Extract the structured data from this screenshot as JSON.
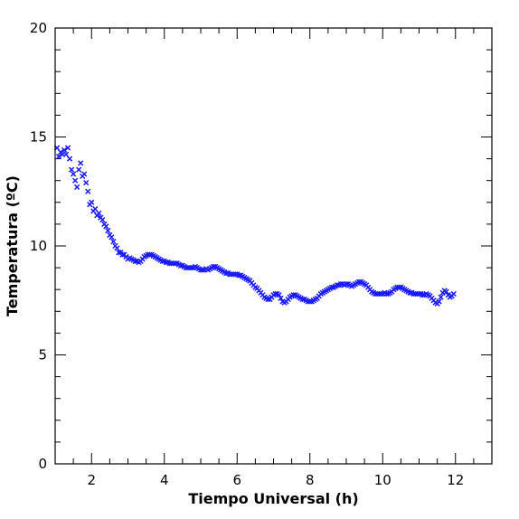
{
  "chart_data": {
    "type": "scatter",
    "title": "",
    "xlabel": "Tiempo Universal (h)",
    "ylabel": "Temperatura (ºC)",
    "xlim": [
      1,
      13
    ],
    "ylim": [
      0,
      20
    ],
    "x_ticks": [
      2,
      4,
      6,
      8,
      10,
      12
    ],
    "y_ticks": [
      0,
      5,
      10,
      15,
      20
    ],
    "x_tick_labels": [
      "2",
      "4",
      "6",
      "8",
      "10",
      "12"
    ],
    "y_tick_labels": [
      "0",
      "5",
      "10",
      "15",
      "20"
    ],
    "x_minor_step": 0.5,
    "y_minor_step": 1,
    "marker": "x",
    "color": "#1a1aff",
    "grid": false,
    "legend": "none",
    "series": [
      {
        "points": [
          [
            1.05,
            14.5
          ],
          [
            1.1,
            14.1
          ],
          [
            1.15,
            14.3
          ],
          [
            1.2,
            14.2
          ],
          [
            1.25,
            14.4
          ],
          [
            1.3,
            14.2
          ],
          [
            1.35,
            14.5
          ],
          [
            1.4,
            14.0
          ],
          [
            1.45,
            13.5
          ],
          [
            1.5,
            13.3
          ],
          [
            1.55,
            13.0
          ],
          [
            1.6,
            12.7
          ],
          [
            1.65,
            13.5
          ],
          [
            1.7,
            13.8
          ],
          [
            1.75,
            13.2
          ],
          [
            1.8,
            13.3
          ],
          [
            1.85,
            12.9
          ],
          [
            1.9,
            12.5
          ],
          [
            1.95,
            11.9
          ],
          [
            2.0,
            12.0
          ],
          [
            2.05,
            11.6
          ],
          [
            2.1,
            11.7
          ],
          [
            2.15,
            11.4
          ],
          [
            2.2,
            11.5
          ],
          [
            2.25,
            11.3
          ],
          [
            2.3,
            11.2
          ],
          [
            2.35,
            11.0
          ],
          [
            2.4,
            10.9
          ],
          [
            2.45,
            10.7
          ],
          [
            2.5,
            10.5
          ],
          [
            2.55,
            10.4
          ],
          [
            2.6,
            10.2
          ],
          [
            2.65,
            10.0
          ],
          [
            2.7,
            9.9
          ],
          [
            2.75,
            9.7
          ],
          [
            2.8,
            9.7
          ],
          [
            2.85,
            9.6
          ],
          [
            2.9,
            9.6
          ],
          [
            2.95,
            9.5
          ],
          [
            3.0,
            9.4
          ],
          [
            3.05,
            9.45
          ],
          [
            3.1,
            9.4
          ],
          [
            3.15,
            9.35
          ],
          [
            3.2,
            9.3
          ],
          [
            3.25,
            9.3
          ],
          [
            3.3,
            9.25
          ],
          [
            3.35,
            9.3
          ],
          [
            3.4,
            9.4
          ],
          [
            3.45,
            9.5
          ],
          [
            3.5,
            9.55
          ],
          [
            3.55,
            9.6
          ],
          [
            3.6,
            9.6
          ],
          [
            3.65,
            9.6
          ],
          [
            3.7,
            9.55
          ],
          [
            3.75,
            9.5
          ],
          [
            3.8,
            9.45
          ],
          [
            3.85,
            9.4
          ],
          [
            3.9,
            9.35
          ],
          [
            3.95,
            9.3
          ],
          [
            4.0,
            9.3
          ],
          [
            4.05,
            9.25
          ],
          [
            4.1,
            9.25
          ],
          [
            4.15,
            9.2
          ],
          [
            4.2,
            9.2
          ],
          [
            4.25,
            9.2
          ],
          [
            4.3,
            9.2
          ],
          [
            4.35,
            9.2
          ],
          [
            4.4,
            9.15
          ],
          [
            4.45,
            9.1
          ],
          [
            4.5,
            9.1
          ],
          [
            4.55,
            9.05
          ],
          [
            4.6,
            9.0
          ],
          [
            4.65,
            9.0
          ],
          [
            4.7,
            9.0
          ],
          [
            4.75,
            9.0
          ],
          [
            4.8,
            9.0
          ],
          [
            4.85,
            9.05
          ],
          [
            4.9,
            9.0
          ],
          [
            4.95,
            8.95
          ],
          [
            5.0,
            8.9
          ],
          [
            5.05,
            8.9
          ],
          [
            5.1,
            8.9
          ],
          [
            5.15,
            8.95
          ],
          [
            5.2,
            8.9
          ],
          [
            5.25,
            8.95
          ],
          [
            5.3,
            9.0
          ],
          [
            5.35,
            9.05
          ],
          [
            5.4,
            9.05
          ],
          [
            5.45,
            9.0
          ],
          [
            5.5,
            8.95
          ],
          [
            5.55,
            8.9
          ],
          [
            5.6,
            8.85
          ],
          [
            5.65,
            8.8
          ],
          [
            5.7,
            8.75
          ],
          [
            5.75,
            8.75
          ],
          [
            5.8,
            8.7
          ],
          [
            5.85,
            8.7
          ],
          [
            5.9,
            8.7
          ],
          [
            5.95,
            8.7
          ],
          [
            6.0,
            8.7
          ],
          [
            6.05,
            8.65
          ],
          [
            6.1,
            8.65
          ],
          [
            6.15,
            8.6
          ],
          [
            6.2,
            8.55
          ],
          [
            6.25,
            8.5
          ],
          [
            6.3,
            8.45
          ],
          [
            6.35,
            8.4
          ],
          [
            6.4,
            8.3
          ],
          [
            6.45,
            8.2
          ],
          [
            6.5,
            8.1
          ],
          [
            6.55,
            8.05
          ],
          [
            6.6,
            7.95
          ],
          [
            6.65,
            7.85
          ],
          [
            6.7,
            7.75
          ],
          [
            6.75,
            7.65
          ],
          [
            6.8,
            7.6
          ],
          [
            6.85,
            7.55
          ],
          [
            6.9,
            7.55
          ],
          [
            6.95,
            7.65
          ],
          [
            7.0,
            7.75
          ],
          [
            7.05,
            7.8
          ],
          [
            7.1,
            7.8
          ],
          [
            7.15,
            7.75
          ],
          [
            7.2,
            7.6
          ],
          [
            7.25,
            7.45
          ],
          [
            7.3,
            7.4
          ],
          [
            7.35,
            7.45
          ],
          [
            7.4,
            7.55
          ],
          [
            7.45,
            7.65
          ],
          [
            7.5,
            7.7
          ],
          [
            7.55,
            7.75
          ],
          [
            7.6,
            7.75
          ],
          [
            7.65,
            7.7
          ],
          [
            7.7,
            7.65
          ],
          [
            7.75,
            7.6
          ],
          [
            7.8,
            7.55
          ],
          [
            7.85,
            7.55
          ],
          [
            7.9,
            7.5
          ],
          [
            7.95,
            7.45
          ],
          [
            8.0,
            7.45
          ],
          [
            8.05,
            7.45
          ],
          [
            8.1,
            7.5
          ],
          [
            8.15,
            7.55
          ],
          [
            8.2,
            7.6
          ],
          [
            8.25,
            7.7
          ],
          [
            8.3,
            7.8
          ],
          [
            8.35,
            7.85
          ],
          [
            8.4,
            7.9
          ],
          [
            8.45,
            7.95
          ],
          [
            8.5,
            8.0
          ],
          [
            8.55,
            8.05
          ],
          [
            8.6,
            8.1
          ],
          [
            8.65,
            8.1
          ],
          [
            8.7,
            8.15
          ],
          [
            8.75,
            8.2
          ],
          [
            8.8,
            8.2
          ],
          [
            8.85,
            8.25
          ],
          [
            8.9,
            8.25
          ],
          [
            8.95,
            8.2
          ],
          [
            9.0,
            8.25
          ],
          [
            9.05,
            8.25
          ],
          [
            9.1,
            8.2
          ],
          [
            9.15,
            8.15
          ],
          [
            9.2,
            8.2
          ],
          [
            9.25,
            8.25
          ],
          [
            9.3,
            8.3
          ],
          [
            9.35,
            8.35
          ],
          [
            9.4,
            8.35
          ],
          [
            9.45,
            8.3
          ],
          [
            9.5,
            8.25
          ],
          [
            9.55,
            8.2
          ],
          [
            9.6,
            8.1
          ],
          [
            9.65,
            8.0
          ],
          [
            9.7,
            7.9
          ],
          [
            9.75,
            7.85
          ],
          [
            9.8,
            7.8
          ],
          [
            9.85,
            7.8
          ],
          [
            9.9,
            7.8
          ],
          [
            9.95,
            7.8
          ],
          [
            10.0,
            7.8
          ],
          [
            10.05,
            7.85
          ],
          [
            10.1,
            7.8
          ],
          [
            10.15,
            7.8
          ],
          [
            10.2,
            7.85
          ],
          [
            10.25,
            7.9
          ],
          [
            10.3,
            8.0
          ],
          [
            10.35,
            8.05
          ],
          [
            10.4,
            8.1
          ],
          [
            10.45,
            8.1
          ],
          [
            10.5,
            8.1
          ],
          [
            10.55,
            8.05
          ],
          [
            10.6,
            8.0
          ],
          [
            10.65,
            7.95
          ],
          [
            10.7,
            7.9
          ],
          [
            10.75,
            7.85
          ],
          [
            10.8,
            7.85
          ],
          [
            10.85,
            7.8
          ],
          [
            10.9,
            7.8
          ],
          [
            10.95,
            7.8
          ],
          [
            11.0,
            7.8
          ],
          [
            11.05,
            7.8
          ],
          [
            11.1,
            7.75
          ],
          [
            11.15,
            7.75
          ],
          [
            11.2,
            7.8
          ],
          [
            11.25,
            7.75
          ],
          [
            11.3,
            7.7
          ],
          [
            11.35,
            7.6
          ],
          [
            11.4,
            7.5
          ],
          [
            11.45,
            7.4
          ],
          [
            11.5,
            7.35
          ],
          [
            11.55,
            7.45
          ],
          [
            11.6,
            7.65
          ],
          [
            11.65,
            7.85
          ],
          [
            11.7,
            7.95
          ],
          [
            11.75,
            7.9
          ],
          [
            11.8,
            7.75
          ],
          [
            11.85,
            7.65
          ],
          [
            11.9,
            7.7
          ],
          [
            11.95,
            7.8
          ]
        ]
      }
    ]
  }
}
